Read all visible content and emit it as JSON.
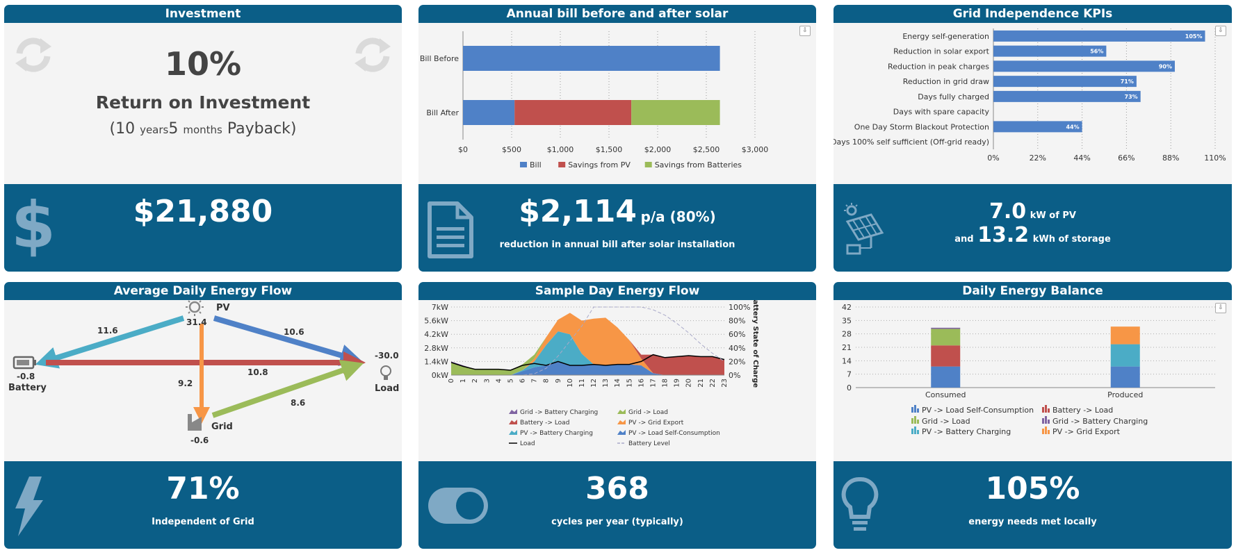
{
  "investment": {
    "title": "Investment",
    "roi_percent": "10%",
    "roi_label": "Return on Investment",
    "payback_open": "(10",
    "payback_years_unit": "years",
    "payback_months": "5",
    "payback_months_unit": "months",
    "payback_close": "Payback)",
    "amount": "$21,880"
  },
  "annual_bill": {
    "title": "Annual bill before and after solar",
    "savings_amount": "$2,114",
    "savings_suffix": "p/a (80%)",
    "savings_desc": "reduction in annual bill after solar installation"
  },
  "kpis": {
    "title": "Grid Independence KPIs",
    "pv_value": "7.0",
    "pv_unit": "kW of PV",
    "and_label": "and",
    "storage_value": "13.2",
    "storage_unit": "kWh of storage"
  },
  "energy_flow": {
    "title": "Average Daily Energy Flow",
    "pv_label": "PV",
    "pv_value": "31.4",
    "battery_label": "Battery",
    "battery_value": "-0.8",
    "load_label": "Load",
    "load_value": "-30.0",
    "grid_label": "Grid",
    "grid_value": "-0.6",
    "pv_to_battery": "11.6",
    "pv_to_load": "10.6",
    "battery_to_load": "10.8",
    "pv_to_grid": "9.2",
    "grid_to_load": "8.6",
    "independence": "71%",
    "independence_label": "Independent of Grid"
  },
  "sample_day": {
    "title": "Sample Day Energy Flow",
    "cycles": "368",
    "cycles_label": "cycles per year (typically)"
  },
  "balance": {
    "title": "Daily Energy Balance",
    "met_locally": "105%",
    "met_locally_label": "energy needs met locally"
  },
  "colors": {
    "header": "#0b5e87",
    "blue": "#4f81c7",
    "red": "#c0504d",
    "green": "#9bbb59",
    "purple": "#8064a2",
    "cyan": "#4bacc6",
    "orange": "#f79646",
    "light_icon": "#7fa9c5"
  },
  "icons": {
    "refresh": "refresh-icon",
    "dollar": "dollar-icon",
    "document": "document-icon",
    "solar": "solar-panel-icon",
    "bolt": "lightning-bolt-icon",
    "toggle": "toggle-icon",
    "bulb": "lightbulb-icon",
    "sun": "sun-icon",
    "battery": "battery-icon",
    "factory": "factory-icon",
    "download": "download-icon"
  },
  "chart_data": [
    {
      "type": "bar",
      "orientation": "horizontal",
      "stacked": true,
      "categories": [
        "Bill Before",
        "Bill After"
      ],
      "series": [
        {
          "name": "Bill",
          "values": [
            2640,
            530
          ]
        },
        {
          "name": "Savings from PV",
          "values": [
            0,
            1200
          ]
        },
        {
          "name": "Savings from Batteries",
          "values": [
            0,
            910
          ]
        }
      ],
      "xlim": [
        0,
        3000
      ],
      "xticks": [
        "$0",
        "$500",
        "$1,000",
        "$1,500",
        "$2,000",
        "$2,500",
        "$3,000"
      ],
      "legend": "bottom"
    },
    {
      "type": "bar",
      "orientation": "horizontal",
      "categories": [
        "Energy self-generation",
        "Reduction in solar export",
        "Reduction in peak charges",
        "Reduction in grid draw",
        "Days fully charged",
        "Days with spare capacity",
        "One Day Storm Blackout Protection",
        "Days 100% self sufficient (Off-grid ready)"
      ],
      "values": [
        105,
        56,
        90,
        71,
        73,
        0,
        44,
        0
      ],
      "data_labels": [
        "105%",
        "56%",
        "90%",
        "71%",
        "73%",
        "",
        "44%",
        ""
      ],
      "xlim": [
        0,
        110
      ],
      "xticks": [
        "0%",
        "22%",
        "44%",
        "66%",
        "88%",
        "110%"
      ]
    },
    {
      "type": "area",
      "x": [
        0,
        1,
        2,
        3,
        4,
        5,
        6,
        7,
        8,
        9,
        10,
        11,
        12,
        13,
        14,
        15,
        16,
        17,
        18,
        19,
        20,
        21,
        22,
        23
      ],
      "series": [
        {
          "name": "Grid -> Battery Charging",
          "values": [
            0.1,
            0.1,
            0,
            0,
            0,
            0,
            0,
            0,
            0,
            0,
            0,
            0,
            0,
            0,
            0,
            0,
            0,
            0,
            0,
            0,
            0,
            0,
            0,
            0
          ]
        },
        {
          "name": "Grid -> Load",
          "values": [
            1.3,
            0.9,
            0.6,
            0.6,
            0.6,
            0.5,
            0.6,
            0.4,
            0,
            0,
            0,
            0,
            0,
            0,
            0,
            0,
            0,
            0,
            0,
            0,
            0,
            0,
            0,
            0
          ]
        },
        {
          "name": "Battery -> Load",
          "values": [
            0,
            0,
            0,
            0,
            0,
            0,
            0,
            0,
            0,
            0,
            0,
            0,
            0,
            0,
            0,
            0,
            0.4,
            1.9,
            1.8,
            1.9,
            2.0,
            1.9,
            1.9,
            1.6
          ]
        },
        {
          "name": "PV -> Grid Export",
          "values": [
            0,
            0,
            0,
            0,
            0,
            0,
            0,
            0.3,
            0.8,
            1.2,
            2.2,
            3.4,
            4.7,
            4.9,
            3.8,
            2.5,
            0.7,
            0,
            0,
            0,
            0,
            0,
            0,
            0
          ]
        },
        {
          "name": "PV -> Battery Charging",
          "values": [
            0,
            0,
            0,
            0,
            0,
            0,
            0.1,
            0.6,
            2.1,
            3.1,
            3.2,
            1.2,
            0,
            0,
            0,
            0,
            0,
            0,
            0,
            0,
            0,
            0,
            0,
            0
          ]
        },
        {
          "name": "PV -> Load Self-Consumption",
          "values": [
            0,
            0,
            0,
            0,
            0,
            0,
            0.4,
            0.8,
            1.0,
            1.4,
            1.0,
            1.0,
            1.1,
            1.0,
            1.1,
            1.1,
            1.0,
            0.2,
            0,
            0,
            0,
            0,
            0,
            0
          ]
        }
      ],
      "lines": [
        {
          "name": "Load",
          "values": [
            1.3,
            0.9,
            0.6,
            0.6,
            0.6,
            0.5,
            1.0,
            1.2,
            1.0,
            1.4,
            1.0,
            1.0,
            1.1,
            1.0,
            1.1,
            1.1,
            1.4,
            2.1,
            1.8,
            1.9,
            2.0,
            1.9,
            1.9,
            1.6
          ]
        },
        {
          "name": "Battery Level",
          "axis": "right",
          "values": [
            0,
            0,
            0,
            0,
            0,
            0,
            0,
            2,
            10,
            28,
            50,
            72,
            100,
            100,
            100,
            100,
            100,
            96,
            88,
            76,
            62,
            46,
            32,
            20
          ]
        }
      ],
      "ylim": [
        0,
        7
      ],
      "yticks": [
        "0kW",
        "1.4kW",
        "2.8kW",
        "4.2kW",
        "5.6kW",
        "7kW"
      ],
      "y2lim": [
        0,
        100
      ],
      "y2ticks": [
        "0%",
        "20%",
        "40%",
        "60%",
        "80%",
        "100%"
      ],
      "y2label": "Battery State of Charge",
      "legend": "bottom"
    },
    {
      "type": "bar",
      "stacked": true,
      "categories": [
        "Consumed",
        "Produced"
      ],
      "series": [
        {
          "name": "PV -> Load Self-Consumption",
          "values": [
            11,
            11
          ]
        },
        {
          "name": "Battery -> Load",
          "values": [
            11,
            0
          ]
        },
        {
          "name": "Grid -> Load",
          "values": [
            8.6,
            0
          ]
        },
        {
          "name": "Grid -> Battery Charging",
          "values": [
            0.6,
            0
          ]
        },
        {
          "name": "PV -> Battery Charging",
          "values": [
            0,
            11.6
          ]
        },
        {
          "name": "PV -> Grid Export",
          "values": [
            0,
            9.2
          ]
        }
      ],
      "ylim": [
        0,
        42
      ],
      "yticks": [
        "0",
        "7",
        "14",
        "21",
        "28",
        "35",
        "42"
      ],
      "legend": "bottom"
    }
  ]
}
